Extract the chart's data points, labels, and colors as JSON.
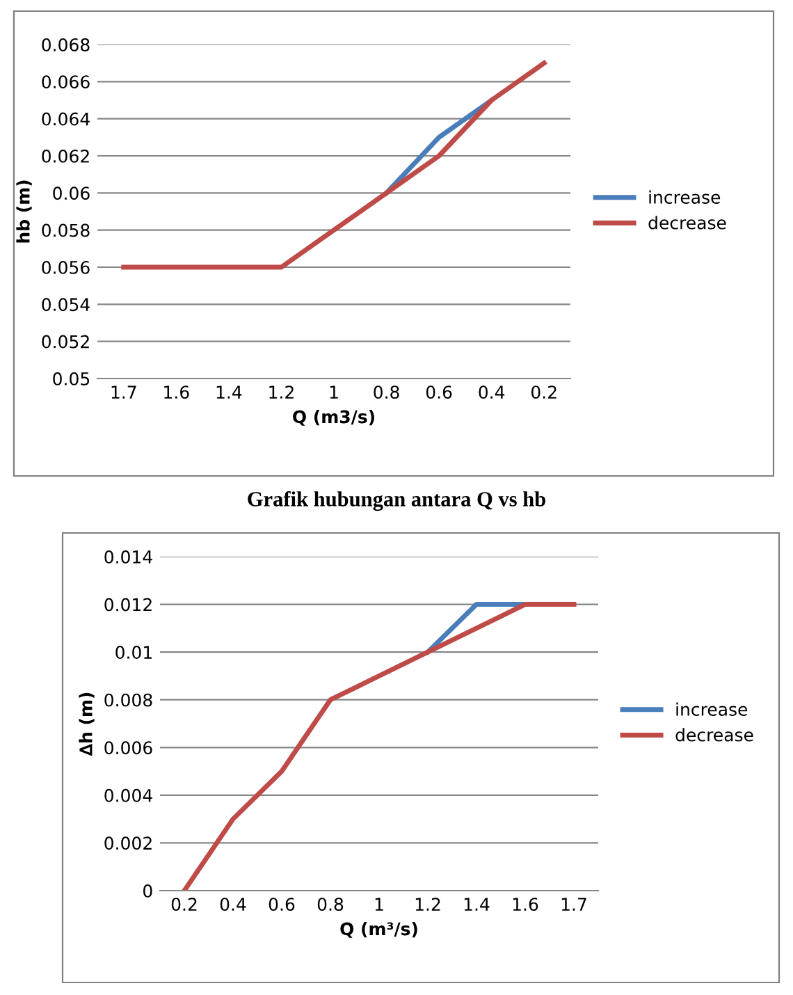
{
  "chart_data": [
    {
      "type": "line",
      "xlabel": "Q (m3/s)",
      "ylabel": "hb (m)",
      "annotations": [
        "Grafik hubungan antara Q vs hb"
      ],
      "categories": [
        "1.7",
        "1.6",
        "1.4",
        "1.2",
        "1",
        "0.8",
        "0.6",
        "0.4",
        "0.2"
      ],
      "series": [
        {
          "name": "increase",
          "color": "#4a7ebb",
          "values": [
            null,
            null,
            null,
            null,
            null,
            0.06,
            0.063,
            0.065,
            null
          ]
        },
        {
          "name": "decrease",
          "color": "#be4b48",
          "values": [
            0.056,
            0.056,
            0.056,
            0.056,
            0.058,
            0.06,
            0.062,
            0.065,
            0.067
          ]
        }
      ],
      "ylim": [
        0.05,
        0.068
      ],
      "yticks": [
        0.05,
        0.052,
        0.054,
        0.056,
        0.058,
        0.06,
        0.062,
        0.064,
        0.066,
        0.068
      ],
      "grid": "y",
      "legend": "right",
      "marker": "none",
      "line_style": "solid"
    },
    {
      "type": "line",
      "xlabel": "Q (m³/s)",
      "ylabel": "∆h (m)",
      "categories": [
        "0.2",
        "0.4",
        "0.6",
        "0.8",
        "1",
        "1.2",
        "1.4",
        "1.6",
        "1.7"
      ],
      "series": [
        {
          "name": "increase",
          "color": "#4a7ebb",
          "values": [
            null,
            null,
            null,
            null,
            null,
            0.01,
            0.012,
            0.012,
            null
          ]
        },
        {
          "name": "decrease",
          "color": "#be4b48",
          "values": [
            0,
            0.003,
            0.005,
            0.008,
            0.009,
            0.01,
            0.011,
            0.012,
            0.012
          ]
        }
      ],
      "ylim": [
        0,
        0.014
      ],
      "yticks": [
        0,
        0.002,
        0.004,
        0.006,
        0.008,
        0.01,
        0.012,
        0.014
      ],
      "grid": "y",
      "legend": "right",
      "marker": "none",
      "line_style": "solid"
    }
  ]
}
